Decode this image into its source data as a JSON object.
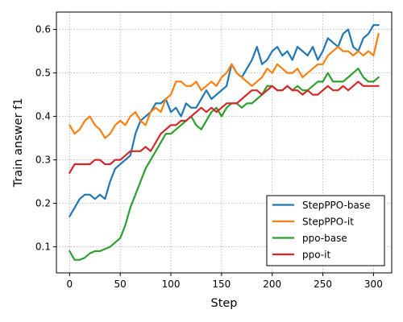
{
  "chart_data": {
    "type": "line",
    "title": "",
    "xlabel": "Step",
    "ylabel": "Train answer f1",
    "xlim": [
      -13,
      318
    ],
    "ylim": [
      0.04,
      0.64
    ],
    "xticks": [
      0,
      50,
      100,
      150,
      200,
      250,
      300
    ],
    "yticks": [
      0.1,
      0.2,
      0.3,
      0.4,
      0.5,
      0.6
    ],
    "grid": true,
    "legend_position": "lower-right",
    "series": [
      {
        "name": "StepPPO-base",
        "color": "#1f77b4",
        "x": [
          0,
          5,
          10,
          15,
          20,
          25,
          30,
          35,
          40,
          45,
          50,
          55,
          60,
          65,
          70,
          75,
          80,
          85,
          90,
          95,
          100,
          105,
          110,
          115,
          120,
          125,
          130,
          135,
          140,
          145,
          150,
          155,
          160,
          165,
          170,
          175,
          180,
          185,
          190,
          195,
          200,
          205,
          210,
          215,
          220,
          225,
          230,
          235,
          240,
          245,
          250,
          255,
          260,
          265,
          270,
          275,
          280,
          285,
          290,
          295,
          300,
          305
        ],
        "y": [
          0.17,
          0.19,
          0.21,
          0.22,
          0.22,
          0.21,
          0.22,
          0.21,
          0.25,
          0.28,
          0.29,
          0.3,
          0.31,
          0.36,
          0.39,
          0.4,
          0.41,
          0.43,
          0.43,
          0.44,
          0.41,
          0.42,
          0.4,
          0.43,
          0.42,
          0.42,
          0.44,
          0.46,
          0.44,
          0.45,
          0.46,
          0.47,
          0.52,
          0.5,
          0.49,
          0.51,
          0.53,
          0.56,
          0.52,
          0.53,
          0.55,
          0.56,
          0.54,
          0.55,
          0.53,
          0.56,
          0.55,
          0.54,
          0.56,
          0.53,
          0.55,
          0.58,
          0.57,
          0.56,
          0.59,
          0.6,
          0.56,
          0.55,
          0.58,
          0.59,
          0.61,
          0.61
        ]
      },
      {
        "name": "StepPPO-it",
        "color": "#ff7f0e",
        "x": [
          0,
          5,
          10,
          15,
          20,
          25,
          30,
          35,
          40,
          45,
          50,
          55,
          60,
          65,
          70,
          75,
          80,
          85,
          90,
          95,
          100,
          105,
          110,
          115,
          120,
          125,
          130,
          135,
          140,
          145,
          150,
          155,
          160,
          165,
          170,
          175,
          180,
          185,
          190,
          195,
          200,
          205,
          210,
          215,
          220,
          225,
          230,
          235,
          240,
          245,
          250,
          255,
          260,
          265,
          270,
          275,
          280,
          285,
          290,
          295,
          300,
          305
        ],
        "y": [
          0.38,
          0.36,
          0.37,
          0.39,
          0.4,
          0.38,
          0.37,
          0.35,
          0.36,
          0.38,
          0.39,
          0.38,
          0.4,
          0.41,
          0.39,
          0.38,
          0.41,
          0.42,
          0.41,
          0.44,
          0.45,
          0.48,
          0.48,
          0.47,
          0.47,
          0.48,
          0.46,
          0.47,
          0.48,
          0.47,
          0.49,
          0.5,
          0.52,
          0.5,
          0.49,
          0.48,
          0.47,
          0.48,
          0.49,
          0.51,
          0.5,
          0.52,
          0.51,
          0.5,
          0.5,
          0.51,
          0.49,
          0.5,
          0.51,
          0.52,
          0.52,
          0.54,
          0.55,
          0.56,
          0.55,
          0.55,
          0.54,
          0.55,
          0.54,
          0.55,
          0.54,
          0.59
        ]
      },
      {
        "name": "ppo-base",
        "color": "#2ca02c",
        "x": [
          0,
          5,
          10,
          15,
          20,
          25,
          30,
          35,
          40,
          45,
          50,
          55,
          60,
          65,
          70,
          75,
          80,
          85,
          90,
          95,
          100,
          105,
          110,
          115,
          120,
          125,
          130,
          135,
          140,
          145,
          150,
          155,
          160,
          165,
          170,
          175,
          180,
          185,
          190,
          195,
          200,
          205,
          210,
          215,
          220,
          225,
          230,
          235,
          240,
          245,
          250,
          255,
          260,
          265,
          270,
          275,
          280,
          285,
          290,
          295,
          300,
          305
        ],
        "y": [
          0.09,
          0.07,
          0.07,
          0.075,
          0.085,
          0.09,
          0.09,
          0.095,
          0.1,
          0.11,
          0.12,
          0.15,
          0.19,
          0.22,
          0.25,
          0.28,
          0.3,
          0.32,
          0.34,
          0.36,
          0.36,
          0.37,
          0.38,
          0.39,
          0.4,
          0.38,
          0.37,
          0.39,
          0.41,
          0.42,
          0.4,
          0.42,
          0.43,
          0.43,
          0.42,
          0.43,
          0.43,
          0.44,
          0.45,
          0.47,
          0.47,
          0.46,
          0.46,
          0.47,
          0.46,
          0.47,
          0.46,
          0.46,
          0.47,
          0.48,
          0.48,
          0.5,
          0.48,
          0.48,
          0.48,
          0.49,
          0.5,
          0.51,
          0.49,
          0.48,
          0.48,
          0.49
        ]
      },
      {
        "name": "ppo-it",
        "color": "#d62728",
        "x": [
          0,
          5,
          10,
          15,
          20,
          25,
          30,
          35,
          40,
          45,
          50,
          55,
          60,
          65,
          70,
          75,
          80,
          85,
          90,
          95,
          100,
          105,
          110,
          115,
          120,
          125,
          130,
          135,
          140,
          145,
          150,
          155,
          160,
          165,
          170,
          175,
          180,
          185,
          190,
          195,
          200,
          205,
          210,
          215,
          220,
          225,
          230,
          235,
          240,
          245,
          250,
          255,
          260,
          265,
          270,
          275,
          280,
          285,
          290,
          295,
          300,
          305
        ],
        "y": [
          0.27,
          0.29,
          0.29,
          0.29,
          0.29,
          0.3,
          0.3,
          0.29,
          0.29,
          0.3,
          0.3,
          0.31,
          0.32,
          0.32,
          0.32,
          0.33,
          0.32,
          0.34,
          0.36,
          0.37,
          0.38,
          0.38,
          0.39,
          0.39,
          0.4,
          0.41,
          0.42,
          0.41,
          0.42,
          0.41,
          0.42,
          0.43,
          0.43,
          0.43,
          0.44,
          0.45,
          0.46,
          0.46,
          0.45,
          0.46,
          0.47,
          0.46,
          0.46,
          0.47,
          0.46,
          0.46,
          0.45,
          0.46,
          0.45,
          0.45,
          0.46,
          0.47,
          0.46,
          0.46,
          0.47,
          0.46,
          0.47,
          0.48,
          0.47,
          0.47,
          0.47,
          0.47
        ]
      }
    ]
  }
}
